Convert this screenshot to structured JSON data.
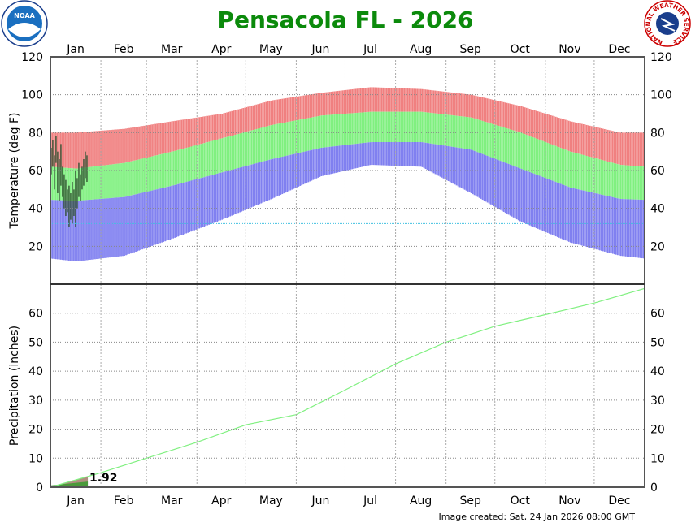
{
  "chart_data": [
    {
      "type": "bar",
      "title": "Pensacola FL - 2026",
      "ylabel": "Temperature (deg F)",
      "ylim": [
        0,
        120
      ],
      "yticks": [
        20,
        40,
        60,
        80,
        100,
        120
      ],
      "months": [
        "Jan",
        "Feb",
        "Mar",
        "Apr",
        "May",
        "Jun",
        "Jul",
        "Aug",
        "Sep",
        "Oct",
        "Nov",
        "Dec"
      ],
      "grid": true,
      "freeze_line": 32,
      "monthly_normal_high": [
        61,
        64,
        70,
        77,
        84,
        89,
        91,
        91,
        88,
        80,
        70,
        63
      ],
      "monthly_normal_low": [
        44,
        46,
        52,
        59,
        66,
        72,
        75,
        75,
        71,
        61,
        51,
        45
      ],
      "monthly_record_high": [
        80,
        82,
        86,
        90,
        97,
        101,
        104,
        103,
        100,
        94,
        86,
        80
      ],
      "monthly_record_low": [
        12,
        15,
        24,
        34,
        45,
        57,
        63,
        62,
        48,
        33,
        22,
        15
      ],
      "observed_2026_jan": {
        "high": [
          72,
          76,
          68,
          78,
          70,
          66,
          74,
          62,
          58,
          55,
          50,
          52,
          48,
          54,
          50,
          60,
          56,
          64,
          58,
          62,
          66,
          70,
          68
        ],
        "low": [
          58,
          62,
          50,
          64,
          48,
          44,
          52,
          46,
          40,
          36,
          38,
          30,
          34,
          32,
          36,
          30,
          40,
          46,
          44,
          50,
          52,
          56,
          54
        ]
      },
      "colors": {
        "record_high": "#f08080",
        "normal": "#80f080",
        "record_low": "#8080f0",
        "observed": "#2f4f2f",
        "freeze": "#40c0e0"
      }
    },
    {
      "type": "area",
      "ylabel": "Precipitation (inches)",
      "ylim": [
        0,
        70
      ],
      "yticks": [
        0,
        10,
        20,
        30,
        40,
        50,
        60
      ],
      "months": [
        "Jan",
        "Feb",
        "Mar",
        "Apr",
        "May",
        "Jun",
        "Jul",
        "Aug",
        "Sep",
        "Oct",
        "Nov",
        "Dec"
      ],
      "normal_cumulative_month_end": [
        5.0,
        10.0,
        15.5,
        21.5,
        25.0,
        33.5,
        42.5,
        50.0,
        55.5,
        59.5,
        63.5,
        68.5
      ],
      "observed_ytd": 1.92,
      "observed_label": "1.92",
      "colors": {
        "normal_line": "#80f080",
        "observed": "#4a9a3a",
        "deficit": "#b09080"
      }
    }
  ],
  "footer": "Image created: Sat, 24 Jan 2026 08:00 GMT",
  "logos": {
    "left": "NOAA",
    "right": "NATIONAL WEATHER SERVICE"
  }
}
